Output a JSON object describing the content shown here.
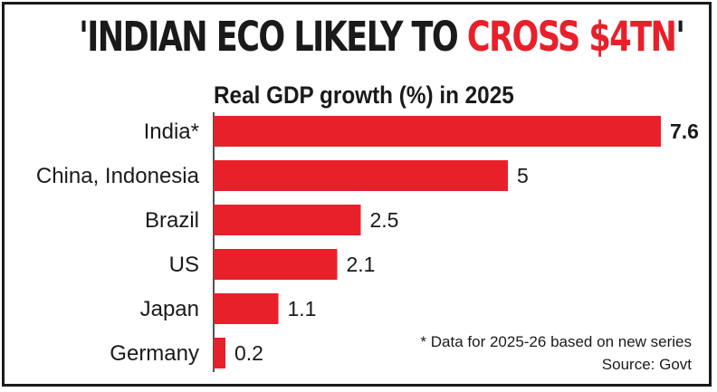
{
  "headline": {
    "prefix": "'INDIAN ECO LIKELY TO ",
    "highlight": "CROSS $4TN",
    "suffix": "'"
  },
  "footnote": "* Data for 2025-26 based on new series",
  "source": "Source: Govt",
  "colors": {
    "bar": "#e8202a",
    "axis": "#1a1a1a",
    "accent": "#e8202a"
  },
  "chart_data": {
    "type": "bar",
    "orientation": "horizontal",
    "title": "Real GDP growth (%) in 2025",
    "xlabel": "",
    "ylabel": "",
    "xlim": [
      0,
      7.6
    ],
    "grid": false,
    "categories": [
      "India*",
      "China, Indonesia",
      "Brazil",
      "US",
      "Japan",
      "Germany"
    ],
    "values": [
      7.6,
      5,
      2.5,
      2.1,
      1.1,
      0.2
    ],
    "value_labels": [
      "7.6",
      "5",
      "2.5",
      "2.1",
      "1.1",
      "0.2"
    ]
  }
}
